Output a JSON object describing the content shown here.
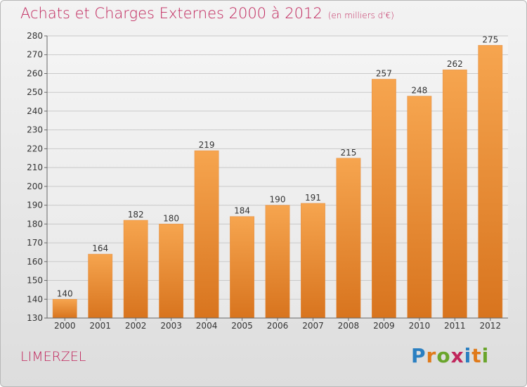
{
  "title": "Achats et Charges Externes 2000 à 2012",
  "subtitle": "(en milliers d'€)",
  "location": "LIMERZEL",
  "brand": {
    "letters": [
      {
        "ch": "P",
        "color": "#2a7fc1"
      },
      {
        "ch": "r",
        "color": "#e07a1a"
      },
      {
        "ch": "o",
        "color": "#6aa52c"
      },
      {
        "ch": "x",
        "color": "#c0265c"
      },
      {
        "ch": "i",
        "color": "#2a7fc1"
      },
      {
        "ch": "t",
        "color": "#e07a1a"
      },
      {
        "ch": "i",
        "color": "#6aa52c"
      }
    ]
  },
  "colors": {
    "accent": "#c0265c",
    "bar_top": "#f6a54f",
    "bar_bottom": "#d8741e"
  },
  "chart_data": {
    "type": "bar",
    "title": "Achats et Charges Externes 2000 à 2012",
    "subtitle": "(en milliers d'€)",
    "categories": [
      "2000",
      "2001",
      "2002",
      "2003",
      "2004",
      "2005",
      "2006",
      "2007",
      "2008",
      "2009",
      "2010",
      "2011",
      "2012"
    ],
    "values": [
      140,
      164,
      182,
      180,
      219,
      184,
      190,
      191,
      215,
      257,
      248,
      262,
      275
    ],
    "ylim": [
      130,
      280
    ],
    "yticks": [
      130,
      140,
      150,
      160,
      170,
      180,
      190,
      200,
      210,
      220,
      230,
      240,
      250,
      260,
      270,
      280
    ],
    "grid": true,
    "xlabel": "",
    "ylabel": ""
  }
}
